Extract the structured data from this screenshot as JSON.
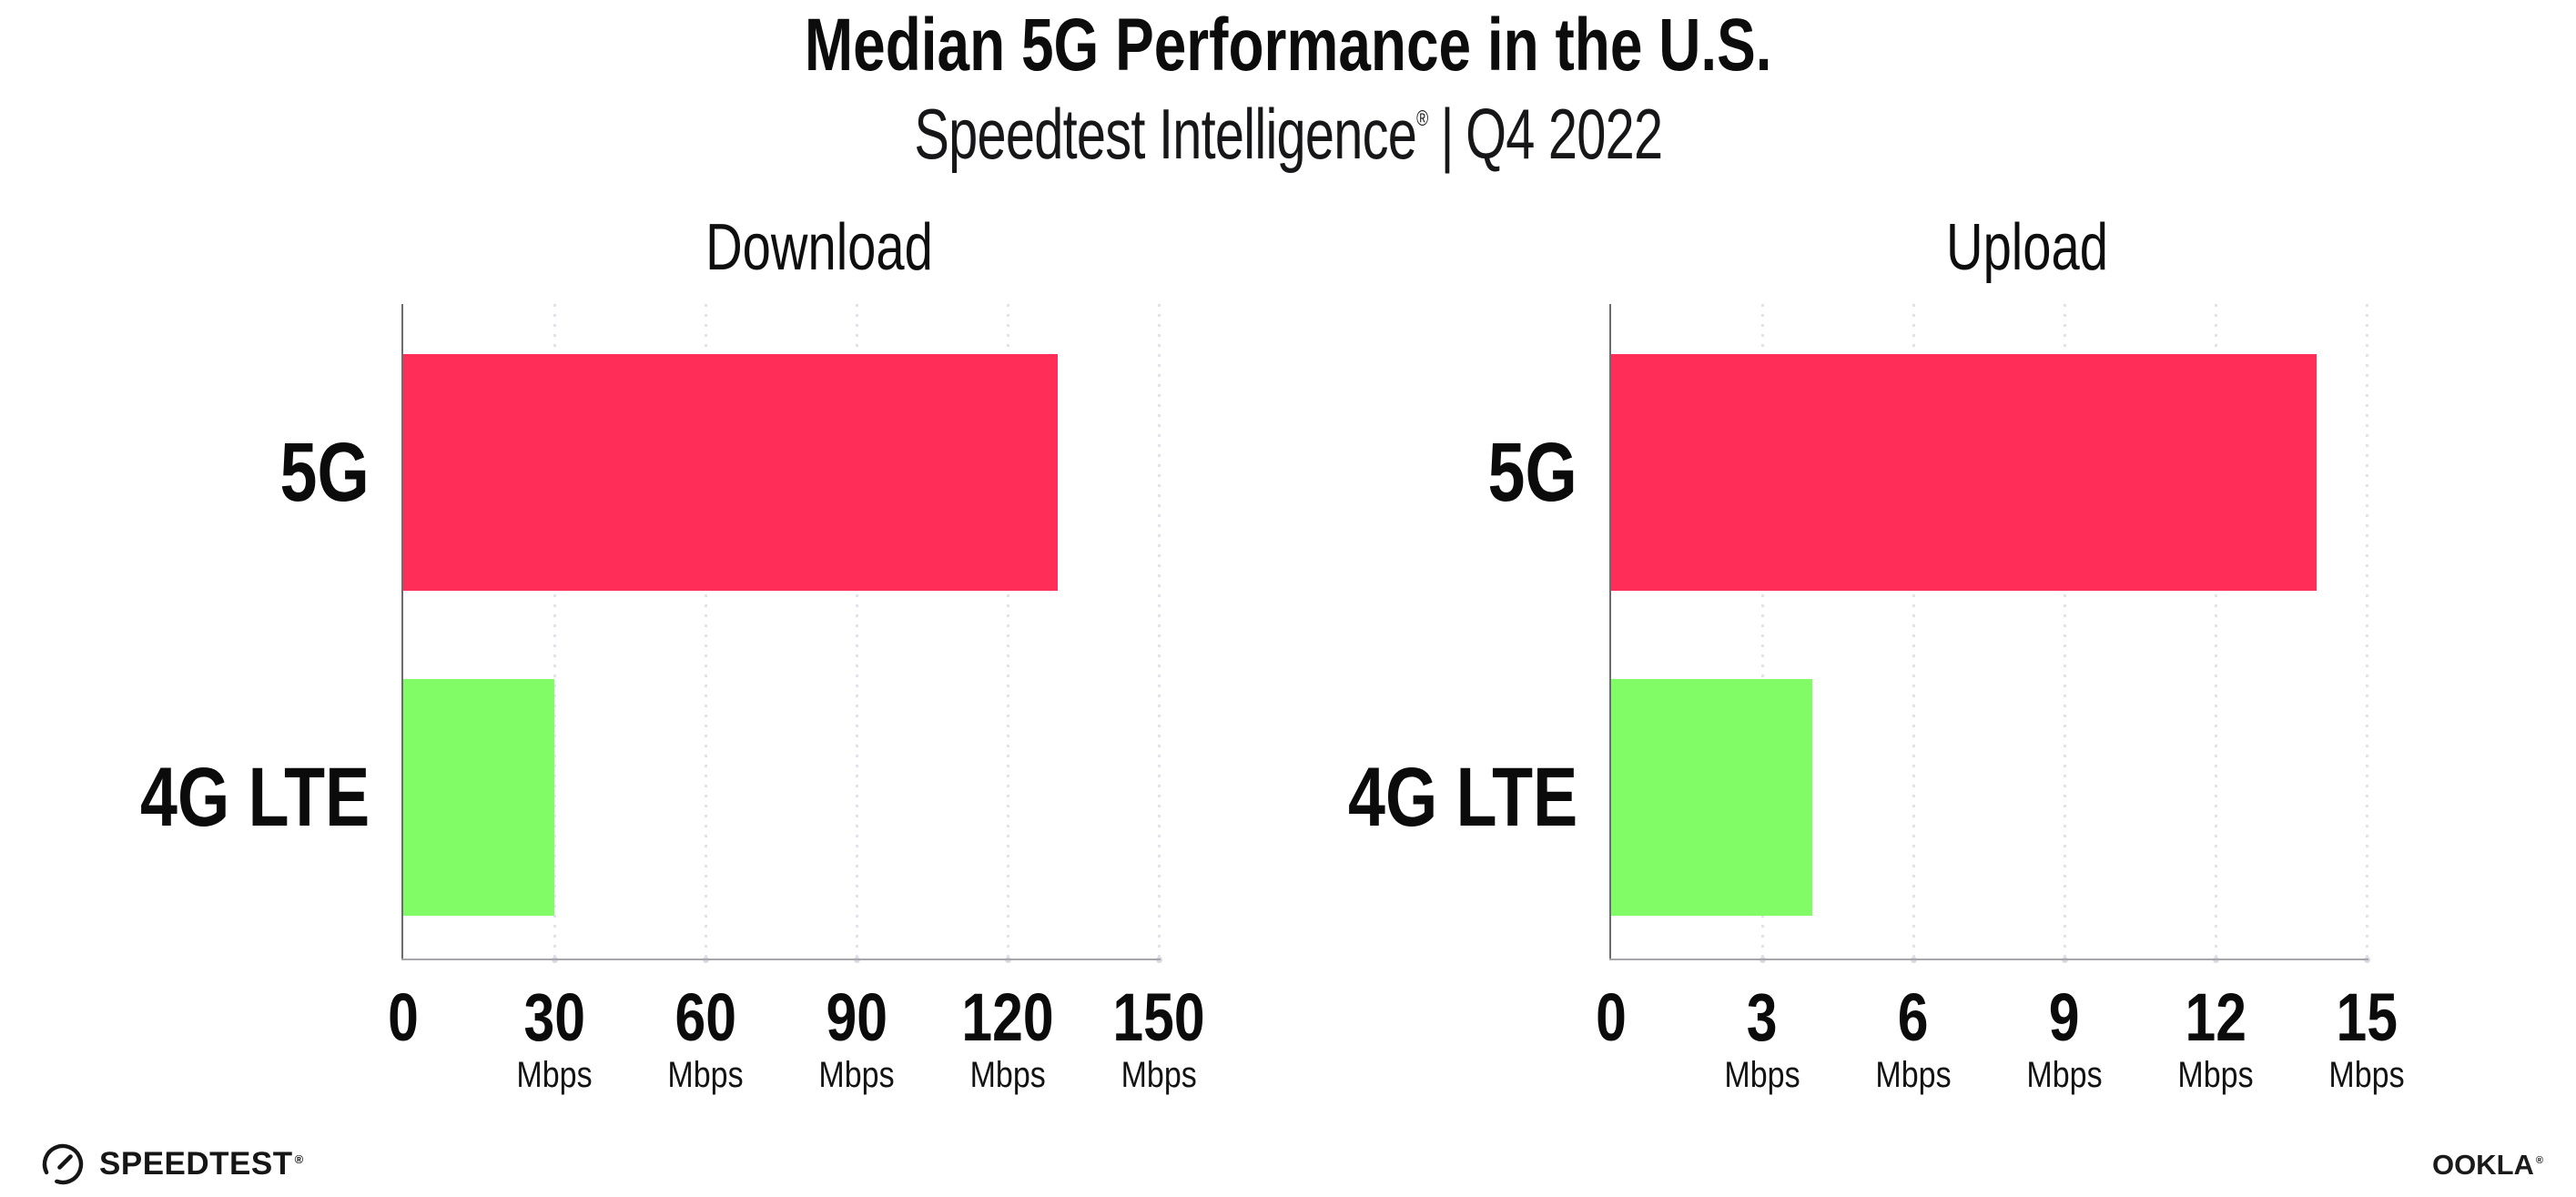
{
  "header": {
    "title": "Median 5G Performance in the U.S.",
    "subtitle_brand": "Speedtest Intelligence",
    "subtitle_reg": "®",
    "subtitle_divider": "|",
    "subtitle_period": "Q4 2022"
  },
  "chart_data": [
    {
      "type": "bar",
      "orientation": "horizontal",
      "title": "Download",
      "categories": [
        "5G",
        "4G LTE"
      ],
      "values": [
        130,
        30
      ],
      "unit": "Mbps",
      "xlabel": "",
      "ylabel": "",
      "xlim": [
        0,
        150
      ],
      "xticks": [
        0,
        30,
        60,
        90,
        120,
        150
      ],
      "bar_colors": [
        "#FF2D58",
        "#81FC66"
      ],
      "grid": "vertical-dotted",
      "legend": "none"
    },
    {
      "type": "bar",
      "orientation": "horizontal",
      "title": "Upload",
      "categories": [
        "5G",
        "4G LTE"
      ],
      "values": [
        14,
        4
      ],
      "unit": "Mbps",
      "xlabel": "",
      "ylabel": "",
      "xlim": [
        0,
        15
      ],
      "xticks": [
        0,
        3,
        6,
        9,
        12,
        15
      ],
      "bar_colors": [
        "#FF2D58",
        "#81FC66"
      ],
      "grid": "vertical-dotted",
      "legend": "none"
    }
  ],
  "colors": {
    "bar_5g": "#FF2D58",
    "bar_4g_lte": "#81FC66",
    "gridline": "#e2e2ec",
    "axis": "#a6a6ac",
    "text": "#111111"
  },
  "footer": {
    "speedtest_label": "SPEEDTEST",
    "speedtest_reg": "®",
    "gauge_icon": "speedtest-gauge-icon",
    "ookla_label": "OOKLA",
    "ookla_reg": "®"
  }
}
